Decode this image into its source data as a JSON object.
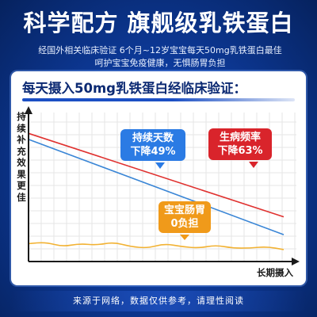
{
  "header": {
    "title": "科学配方  旗舰级乳铁蛋白",
    "subtitle_line1": "经国外相关临床验证  6个月~12岁宝宝每天50mg乳铁蛋白最佳",
    "subtitle_line2": "呵护宝宝免疫健康，无惧肠胃负担"
  },
  "chart_data": {
    "type": "line",
    "title": "每天摄入50mg乳铁蛋白经临床验证：",
    "ylabel": "持续补充效果更佳",
    "xlabel": "长期摄入",
    "series": [
      {
        "name": "",
        "color": "#e0312f",
        "values": [
          0.86,
          0.3
        ]
      },
      {
        "name": "",
        "color": "#3a86d6",
        "values": [
          0.82,
          0.18
        ]
      },
      {
        "name": "",
        "color": "#f2b233",
        "values": [
          0.12,
          0.13,
          0.1,
          0.12,
          0.11,
          0.13,
          0.1,
          0.09,
          0.12,
          0.1,
          0.09,
          0.11,
          0.09,
          0.09,
          0.1,
          0.08
        ]
      }
    ],
    "annotations": [
      {
        "lines": [
          "持续天数",
          "下降49%"
        ],
        "color": "#2b7be4"
      },
      {
        "lines": [
          "生病频率",
          "下降63%"
        ],
        "color": "#d9242b"
      },
      {
        "lines": [
          "宝宝肠胃",
          "0负担"
        ],
        "color": "#f09a1a"
      }
    ],
    "grid": true
  },
  "footer": {
    "disclaimer": "来源于网络，数据仅供参考，请理性阅读"
  }
}
